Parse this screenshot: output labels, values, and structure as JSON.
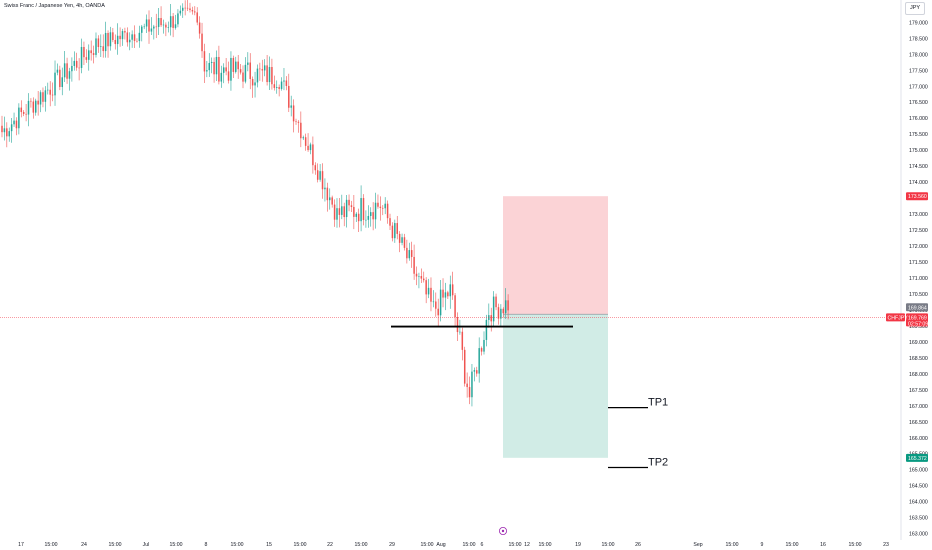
{
  "header": {
    "symbol_title": "Swiss Franc / Japanese Yen, 4h, OANDA",
    "currency_button": "JPY"
  },
  "chart_data": {
    "type": "candlestick",
    "symbol": "CHFJPY",
    "interval": "4h",
    "ylim": [
      162.8,
      179.7
    ],
    "y_ticks": [
      "179.000",
      "178.500",
      "178.000",
      "177.500",
      "177.000",
      "176.500",
      "176.000",
      "175.500",
      "175.000",
      "174.500",
      "174.000",
      "173.500",
      "173.000",
      "172.500",
      "172.000",
      "171.500",
      "171.000",
      "170.500",
      "170.000",
      "169.500",
      "169.000",
      "168.500",
      "168.000",
      "167.500",
      "167.000",
      "166.500",
      "166.000",
      "165.500",
      "165.000",
      "164.500",
      "164.000",
      "163.500",
      "163.000"
    ],
    "x_ticks": [
      "17",
      "15:00",
      "24",
      "15:00",
      "Jul",
      "15:00",
      "8",
      "15:00",
      "15",
      "15:00",
      "22",
      "15:00",
      "29",
      "15:00",
      "Aug",
      "15:00",
      "6",
      "15:00",
      "12",
      "15:00",
      "19",
      "15:00",
      "26",
      "Sep",
      "15:00",
      "9",
      "15:00",
      "16",
      "15:00",
      "23"
    ],
    "price_labels": {
      "stop_loss": "173.560",
      "entry": "169.864",
      "last_symbol": "CHFJPY",
      "last_price": "169.769",
      "countdown": "02:57:09",
      "target": "165.372"
    },
    "levels": {
      "stop_loss": 173.56,
      "entry": 169.864,
      "last": 169.769,
      "target": 165.372,
      "support_line": 169.48,
      "tp1": 167.1,
      "tp2": 165.35
    },
    "annotations": [
      "TP1",
      "TP2"
    ],
    "colors": {
      "up": "#26a69a",
      "down": "#ef5350",
      "loss_zone": "#fbd3d6",
      "profit_zone": "#d1ece6",
      "last_badge": "#f23645",
      "entry_badge": "#787b86",
      "target_badge": "#089981"
    },
    "segments": [
      {
        "start": 0,
        "n": 40,
        "from": 175.5,
        "to": 178.3,
        "vol": 0.45
      },
      {
        "start": 40,
        "n": 42,
        "from": 178.3,
        "to": 179.3,
        "vol": 0.4
      },
      {
        "start": 82,
        "n": 3,
        "from": 179.3,
        "to": 177.6,
        "vol": 0.3
      },
      {
        "start": 85,
        "n": 31,
        "from": 177.6,
        "to": 177.3,
        "vol": 0.5
      },
      {
        "start": 116,
        "n": 24,
        "from": 177.3,
        "to": 173.0,
        "vol": 0.45
      },
      {
        "start": 140,
        "n": 18,
        "from": 173.0,
        "to": 173.3,
        "vol": 0.55
      },
      {
        "start": 158,
        "n": 22,
        "from": 173.3,
        "to": 170.0,
        "vol": 0.5
      },
      {
        "start": 180,
        "n": 7,
        "from": 170.0,
        "to": 170.6,
        "vol": 0.5
      },
      {
        "start": 187,
        "n": 8,
        "from": 170.6,
        "to": 167.3,
        "vol": 0.6
      },
      {
        "start": 195,
        "n": 8,
        "from": 167.3,
        "to": 170.0,
        "vol": 0.55
      },
      {
        "start": 203,
        "n": 8,
        "from": 170.0,
        "to": 170.2,
        "vol": 0.5
      }
    ],
    "seed": 7
  }
}
